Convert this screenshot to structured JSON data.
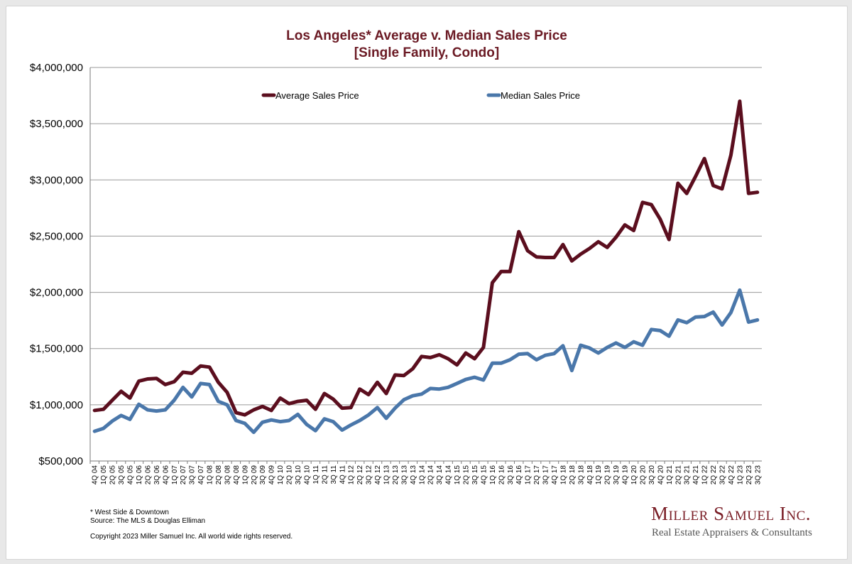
{
  "colors": {
    "average": "#5b0e1e",
    "median": "#4a77aa",
    "title": "#6b1a24",
    "grid": "#9a9a9a",
    "brand": "#7a1e26",
    "brand_sub": "#555555"
  },
  "chart_data": {
    "type": "line",
    "title": "Los Angeles* Average v. Median Sales Price",
    "subtitle": "[Single Family, Condo]",
    "xlabel": "",
    "ylabel": "",
    "ylim": [
      500000,
      4000000
    ],
    "y_ticks": [
      500000,
      1000000,
      1500000,
      2000000,
      2500000,
      3000000,
      3500000,
      4000000
    ],
    "y_tick_labels": [
      "$500,000",
      "$1,000,000",
      "$1,500,000",
      "$2,000,000",
      "$2,500,000",
      "$3,000,000",
      "$3,500,000",
      "$4,000,000"
    ],
    "grid": true,
    "legend_position": "top",
    "categories": [
      "4Q 04",
      "1Q 05",
      "2Q 05",
      "3Q 05",
      "4Q 05",
      "1Q 06",
      "2Q 06",
      "3Q 06",
      "4Q 06",
      "1Q 07",
      "2Q 07",
      "3Q 07",
      "4Q 07",
      "1Q 08",
      "2Q 08",
      "3Q 08",
      "4Q 08",
      "1Q 09",
      "2Q 09",
      "3Q 09",
      "4Q 09",
      "1Q 10",
      "2Q 10",
      "3Q 10",
      "4Q 10",
      "1Q 11",
      "2Q 11",
      "3Q 11",
      "4Q 11",
      "1Q 12",
      "2Q 12",
      "3Q 12",
      "4Q 12",
      "1Q 13",
      "2Q 13",
      "3Q 13",
      "4Q 13",
      "1Q 14",
      "2Q 14",
      "3Q 14",
      "4Q 14",
      "1Q 15",
      "2Q 15",
      "3Q 15",
      "4Q 15",
      "1Q 16",
      "2Q 16",
      "3Q 16",
      "4Q 16",
      "1Q 17",
      "2Q 17",
      "3Q 17",
      "4Q 17",
      "1Q 18",
      "2Q 18",
      "3Q 18",
      "4Q 18",
      "1Q 19",
      "2Q 19",
      "3Q 19",
      "4Q 19",
      "1Q 20",
      "2Q 20",
      "3Q 20",
      "4Q 20",
      "1Q 21",
      "2Q 21",
      "3Q 21",
      "4Q 21",
      "1Q 22",
      "2Q 22",
      "3Q 22",
      "4Q 22",
      "1Q 23",
      "2Q 23",
      "3Q 23"
    ],
    "series": [
      {
        "name": "Average Sales Price",
        "values": [
          950000,
          960000,
          1040000,
          1120000,
          1060000,
          1210000,
          1230000,
          1235000,
          1180000,
          1205000,
          1290000,
          1280000,
          1345000,
          1335000,
          1200000,
          1110000,
          930000,
          910000,
          955000,
          985000,
          950000,
          1060000,
          1010000,
          1030000,
          1040000,
          960000,
          1100000,
          1050000,
          970000,
          975000,
          1140000,
          1090000,
          1200000,
          1100000,
          1265000,
          1260000,
          1320000,
          1430000,
          1420000,
          1445000,
          1410000,
          1355000,
          1460000,
          1410000,
          1510000,
          2085000,
          2185000,
          2185000,
          2540000,
          2370000,
          2315000,
          2310000,
          2310000,
          2425000,
          2280000,
          2340000,
          2390000,
          2450000,
          2400000,
          2490000,
          2600000,
          2550000,
          2800000,
          2780000,
          2650000,
          2470000,
          2970000,
          2880000,
          3030000,
          3190000,
          2950000,
          2920000,
          3220000,
          3700000,
          2880000,
          2890000
        ]
      },
      {
        "name": "Median Sales Price",
        "values": [
          765000,
          790000,
          855000,
          905000,
          870000,
          1005000,
          955000,
          945000,
          955000,
          1040000,
          1155000,
          1070000,
          1190000,
          1180000,
          1030000,
          1000000,
          860000,
          835000,
          755000,
          845000,
          865000,
          850000,
          860000,
          915000,
          825000,
          770000,
          875000,
          850000,
          775000,
          820000,
          860000,
          910000,
          975000,
          880000,
          970000,
          1045000,
          1080000,
          1095000,
          1145000,
          1140000,
          1155000,
          1190000,
          1225000,
          1245000,
          1220000,
          1370000,
          1370000,
          1400000,
          1450000,
          1455000,
          1400000,
          1440000,
          1455000,
          1525000,
          1305000,
          1530000,
          1505000,
          1460000,
          1510000,
          1550000,
          1510000,
          1560000,
          1530000,
          1670000,
          1660000,
          1610000,
          1755000,
          1730000,
          1780000,
          1785000,
          1825000,
          1710000,
          1820000,
          2020000,
          1735000,
          1755000
        ]
      }
    ]
  },
  "footnotes": {
    "note": "* West Side & Downtown",
    "source": "Source: The MLS & Douglas Elliman",
    "copyright": "Copyright 2023 Miller Samuel Inc.  All world wide rights reserved."
  },
  "brand": {
    "name": "Miller Samuel Inc.",
    "tagline": "Real Estate Appraisers & Consultants"
  }
}
